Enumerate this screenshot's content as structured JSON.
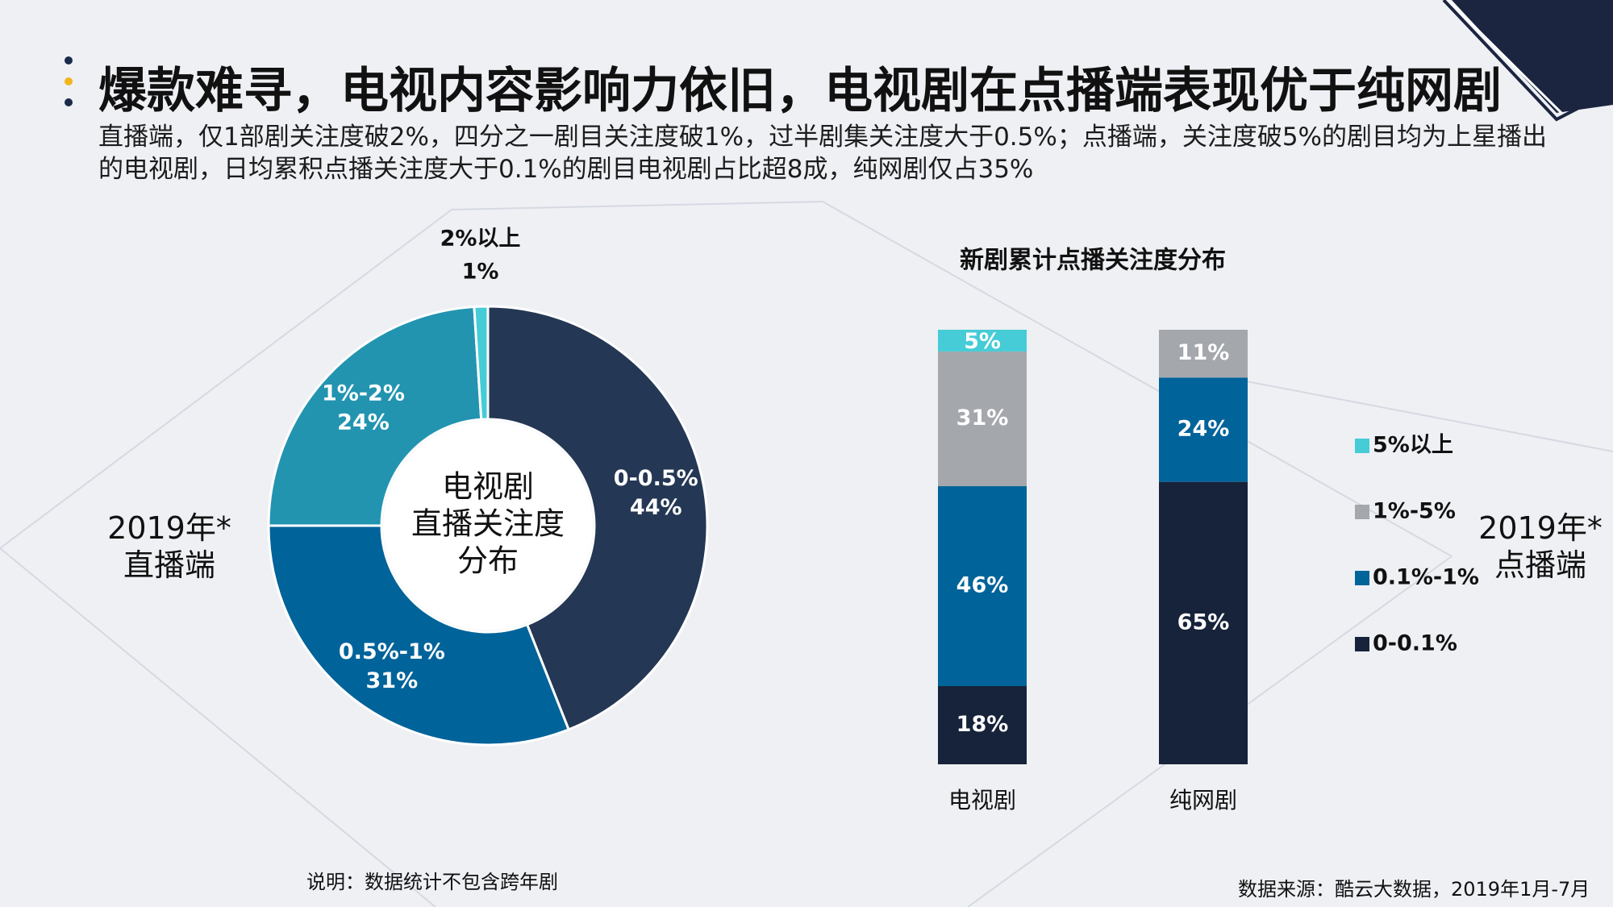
{
  "header": {
    "title": "爆款难寻，电视内容影响力依旧，电视剧在点播端表现优于纯网剧",
    "subtitle": "直播端，仅1部剧关注度破2%，四分之一剧目关注度破1%，过半剧集关注度大于0.5%；点播端，关注度破5%的剧目均为上星播出的电视剧，日均累积点播关注度大于0.1%的剧目电视剧占比超8成，纯网剧仅占35%"
  },
  "colors": {
    "dark_navy": "#243754",
    "deep_navy": "#17233a",
    "blue": "#006399",
    "teal": "#2294b0",
    "cyan": "#45ccd6",
    "gray": "#a4a7ac",
    "dot_dark": "#1b2a4b",
    "dot_gold": "#f1b51c"
  },
  "left_panel": {
    "label_line1": "2019年*",
    "label_line2": "直播端"
  },
  "right_panel": {
    "label_line1": "2019年*",
    "label_line2": "点播端"
  },
  "chart_data": [
    {
      "type": "pie",
      "donut": true,
      "center_label": [
        "电视剧",
        "直播关注度",
        "分布"
      ],
      "slices": [
        {
          "label": "0-0.5%",
          "value": 44,
          "value_label": "44%",
          "color": "#243754"
        },
        {
          "label": "0.5%-1%",
          "value": 31,
          "value_label": "31%",
          "color": "#006399"
        },
        {
          "label": "1%-2%",
          "value": 24,
          "value_label": "24%",
          "color": "#2294b0"
        },
        {
          "label": "2%以上",
          "value": 1,
          "value_label": "1%",
          "color": "#45ccd6"
        }
      ]
    },
    {
      "type": "bar",
      "stacked": true,
      "title": "新剧累计点播关注度分布",
      "categories": [
        "电视剧",
        "纯网剧"
      ],
      "series": [
        {
          "name": "0-0.1%",
          "values": [
            18,
            65
          ],
          "color": "#17233a"
        },
        {
          "name": "0.1%-1%",
          "values": [
            46,
            24
          ],
          "color": "#006399"
        },
        {
          "name": "1%-5%",
          "values": [
            31,
            11
          ],
          "color": "#a4a7ac"
        },
        {
          "name": "5%以上",
          "values": [
            5,
            0
          ],
          "color": "#45ccd6"
        }
      ],
      "legend_order": [
        "5%以上",
        "1%-5%",
        "0.1%-1%",
        "0-0.1%"
      ],
      "legend_position": "right"
    }
  ],
  "footer": {
    "note": "说明：数据统计不包含跨年剧",
    "source": "数据来源：酷云大数据，2019年1月-7月"
  }
}
